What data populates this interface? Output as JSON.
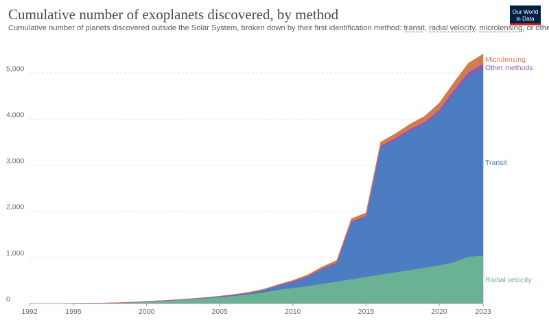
{
  "header": {
    "title": "Cumulative number of exoplanets discovered, by method",
    "subtitle_before": "Cumulative number of planets discovered outside the Solar System, broken down by their first identification method: ",
    "subtitle_link_transit": "transit",
    "subtitle_sep1": ", ",
    "subtitle_link_rv": "radial velocity",
    "subtitle_sep2": ", ",
    "subtitle_link_micro": "microlensing",
    "subtitle_after": ", or other.",
    "logo_line1": "Our World",
    "logo_line2": "in Data"
  },
  "chart_data": {
    "type": "area",
    "stacked": true,
    "x": [
      1992,
      1993,
      1994,
      1995,
      1996,
      1997,
      1998,
      1999,
      2000,
      2001,
      2002,
      2003,
      2004,
      2005,
      2006,
      2007,
      2008,
      2009,
      2010,
      2011,
      2012,
      2013,
      2014,
      2015,
      2016,
      2017,
      2018,
      2019,
      2020,
      2021,
      2022,
      2023
    ],
    "series": [
      {
        "name": "Radial velocity",
        "color": "#6bb193",
        "values": [
          0,
          0,
          0,
          2,
          7,
          8,
          14,
          26,
          42,
          58,
          75,
          95,
          115,
          140,
          168,
          200,
          240,
          300,
          340,
          380,
          430,
          480,
          530,
          580,
          630,
          680,
          730,
          780,
          830,
          900,
          1020,
          1040
        ]
      },
      {
        "name": "Transit",
        "color": "#4c7dc2",
        "values": [
          0,
          0,
          0,
          0,
          0,
          0,
          0,
          0,
          0,
          0,
          1,
          2,
          5,
          8,
          15,
          25,
          45,
          80,
          120,
          190,
          300,
          380,
          1220,
          1280,
          2750,
          2860,
          3000,
          3100,
          3300,
          3650,
          3900,
          4050
        ]
      },
      {
        "name": "Other methods",
        "color": "#8a5bb1",
        "values": [
          2,
          2,
          2,
          2,
          2,
          2,
          3,
          3,
          4,
          5,
          6,
          7,
          8,
          9,
          10,
          12,
          14,
          16,
          20,
          22,
          26,
          30,
          35,
          40,
          45,
          50,
          55,
          60,
          70,
          80,
          100,
          110
        ]
      },
      {
        "name": "Microlensing",
        "color": "#cf7c4e",
        "values": [
          0,
          0,
          0,
          0,
          0,
          0,
          0,
          0,
          0,
          0,
          0,
          0,
          2,
          4,
          6,
          8,
          12,
          16,
          22,
          30,
          38,
          46,
          55,
          65,
          78,
          90,
          105,
          120,
          145,
          160,
          195,
          210
        ]
      }
    ],
    "y_ticks": [
      0,
      1000,
      2000,
      3000,
      4000,
      5000
    ],
    "y_tick_labels": [
      "0",
      "1,000",
      "2,000",
      "3,000",
      "4,000",
      "5,000"
    ],
    "x_ticks": [
      1992,
      1995,
      2000,
      2005,
      2010,
      2015,
      2020,
      2023
    ],
    "x_tick_labels": [
      "1992",
      "1995",
      "2000",
      "2005",
      "2010",
      "2015",
      "2020",
      "2023"
    ],
    "ylim": [
      0,
      5600
    ],
    "xlim": [
      1992,
      2023
    ],
    "grid": "horizontal dashed",
    "legend": "inline labels at right"
  }
}
